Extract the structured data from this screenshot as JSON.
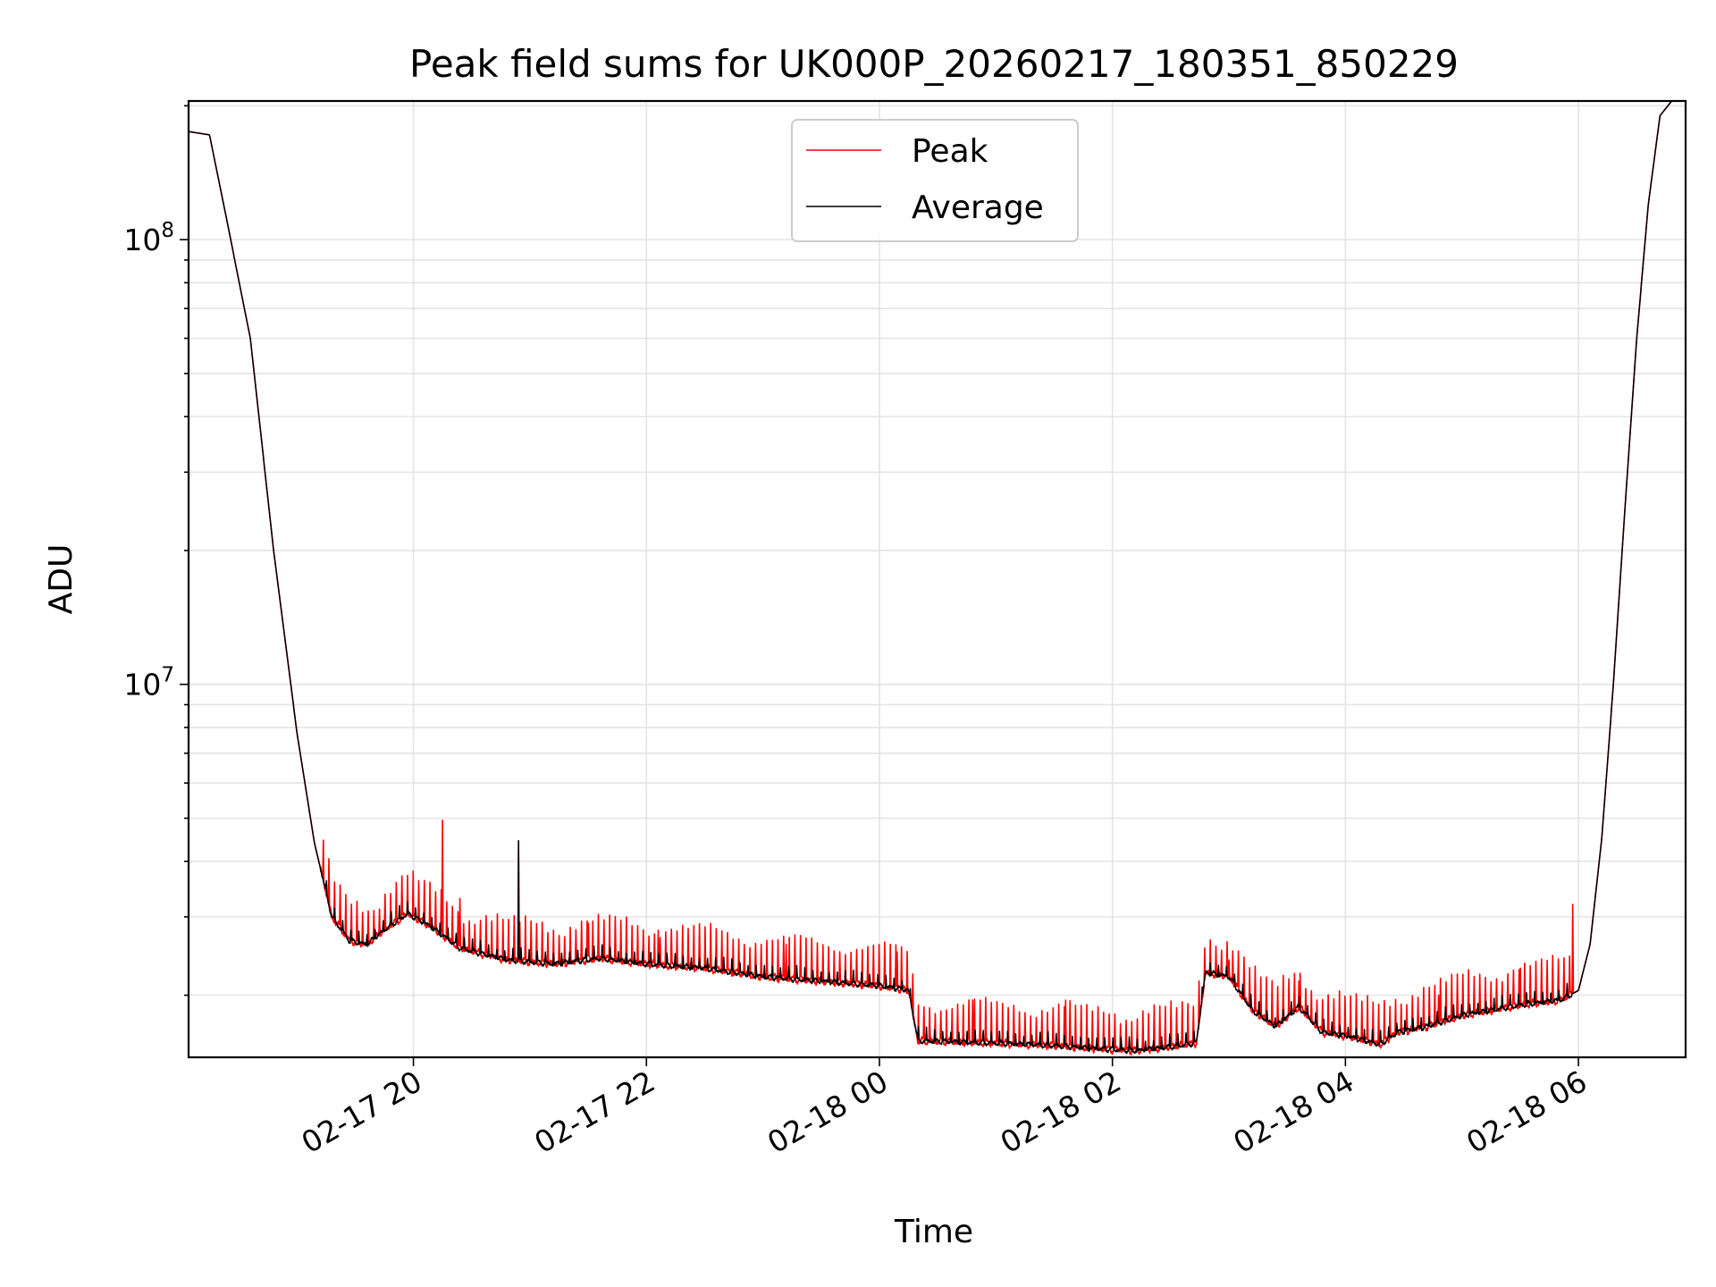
{
  "chart_data": {
    "type": "line",
    "title": "Peak field sums for UK000P_20260217_180351_850229",
    "xlabel": "Time",
    "ylabel": "ADU",
    "yscale": "log",
    "ylim": [
      1450000,
      205000000
    ],
    "xlim_hours": [
      -1.93,
      10.92
    ],
    "grid": true,
    "legend_position": "top-center",
    "x_ticks": [
      {
        "hour": 0,
        "label": "02-17 20"
      },
      {
        "hour": 2,
        "label": "02-17 22"
      },
      {
        "hour": 4,
        "label": "02-18 00"
      },
      {
        "hour": 6,
        "label": "02-18 02"
      },
      {
        "hour": 8,
        "label": "02-18 04"
      },
      {
        "hour": 10,
        "label": "02-18 06"
      }
    ],
    "y_major_ticks": [
      {
        "value": 10000000,
        "base": "10",
        "exp": "7"
      },
      {
        "value": 100000000,
        "base": "10",
        "exp": "8"
      }
    ],
    "series": [
      {
        "name": "Peak",
        "color": "#ff0000",
        "baseline_hours": [
          -1.93,
          -1.75,
          -1.6,
          -1.4,
          -1.2,
          -1.0,
          -0.85,
          -0.7,
          -0.55,
          -0.4,
          -0.25,
          -0.05,
          0.15,
          0.4,
          0.8,
          1.2,
          1.6,
          2.0,
          2.5,
          3.0,
          3.5,
          4.0,
          4.25,
          4.33,
          5.0,
          5.5,
          5.8,
          6.2,
          6.5,
          6.72,
          6.8,
          7.0,
          7.2,
          7.4,
          7.6,
          7.8,
          8.0,
          8.3,
          8.45,
          8.7,
          9.0,
          9.5,
          9.85,
          10.0,
          10.1,
          10.2,
          10.3,
          10.4,
          10.5,
          10.6,
          10.7,
          10.8,
          10.92
        ],
        "baseline_values": [
          175000000,
          172000000,
          110000000,
          60000000,
          20000000,
          7800000,
          4400000,
          3000000,
          2650000,
          2600000,
          2800000,
          3050000,
          2850000,
          2550000,
          2400000,
          2350000,
          2420000,
          2350000,
          2300000,
          2200000,
          2150000,
          2100000,
          2050000,
          1580000,
          1560000,
          1540000,
          1520000,
          1500000,
          1530000,
          1560000,
          2250000,
          2200000,
          1850000,
          1700000,
          1880000,
          1650000,
          1620000,
          1550000,
          1650000,
          1700000,
          1800000,
          1900000,
          1950000,
          2050000,
          2600000,
          4500000,
          10000000,
          25000000,
          60000000,
          120000000,
          190000000,
          205000000,
          205000000
        ],
        "spikes": [
          {
            "hour": 0.25,
            "value": 4950000
          },
          {
            "hour": 0.9,
            "value": 4450000
          },
          {
            "hour": 0.4,
            "value": 3300000
          },
          {
            "hour": 1.5,
            "value": 2900000
          },
          {
            "hour": 2.1,
            "value": 2800000
          },
          {
            "hour": 3.2,
            "value": 2600000
          },
          {
            "hour": 4.15,
            "value": 2500000
          },
          {
            "hour": 4.8,
            "value": 1950000
          },
          {
            "hour": 5.6,
            "value": 1950000
          },
          {
            "hour": 7.0,
            "value": 2400000
          },
          {
            "hour": 7.6,
            "value": 2150000
          },
          {
            "hour": 8.8,
            "value": 2000000
          },
          {
            "hour": 9.5,
            "value": 2300000
          },
          {
            "hour": 9.95,
            "value": 3200000
          }
        ]
      },
      {
        "name": "Average",
        "color": "#000000",
        "baseline_hours": [
          -1.93,
          -1.75,
          -1.6,
          -1.4,
          -1.2,
          -1.0,
          -0.85,
          -0.7,
          -0.55,
          -0.4,
          -0.25,
          -0.05,
          0.15,
          0.4,
          0.8,
          1.2,
          1.6,
          2.0,
          2.5,
          3.0,
          3.5,
          4.0,
          4.25,
          4.33,
          5.0,
          5.5,
          5.8,
          6.2,
          6.5,
          6.72,
          6.8,
          7.0,
          7.2,
          7.4,
          7.6,
          7.8,
          8.0,
          8.3,
          8.45,
          8.7,
          9.0,
          9.5,
          9.85,
          10.0,
          10.1,
          10.2,
          10.3,
          10.4,
          10.5,
          10.6,
          10.7,
          10.8,
          10.92
        ],
        "baseline_values": [
          175000000,
          172000000,
          110000000,
          60000000,
          20000000,
          7800000,
          4400000,
          3000000,
          2650000,
          2600000,
          2800000,
          3050000,
          2850000,
          2550000,
          2400000,
          2350000,
          2420000,
          2350000,
          2300000,
          2200000,
          2150000,
          2100000,
          2050000,
          1580000,
          1560000,
          1540000,
          1520000,
          1500000,
          1530000,
          1560000,
          2250000,
          2200000,
          1850000,
          1700000,
          1880000,
          1650000,
          1620000,
          1550000,
          1650000,
          1700000,
          1800000,
          1900000,
          1950000,
          2050000,
          2600000,
          4500000,
          10000000,
          25000000,
          60000000,
          120000000,
          190000000,
          205000000,
          205000000
        ],
        "spikes": [
          {
            "hour": 0.9,
            "value": 4450000
          }
        ]
      }
    ]
  }
}
